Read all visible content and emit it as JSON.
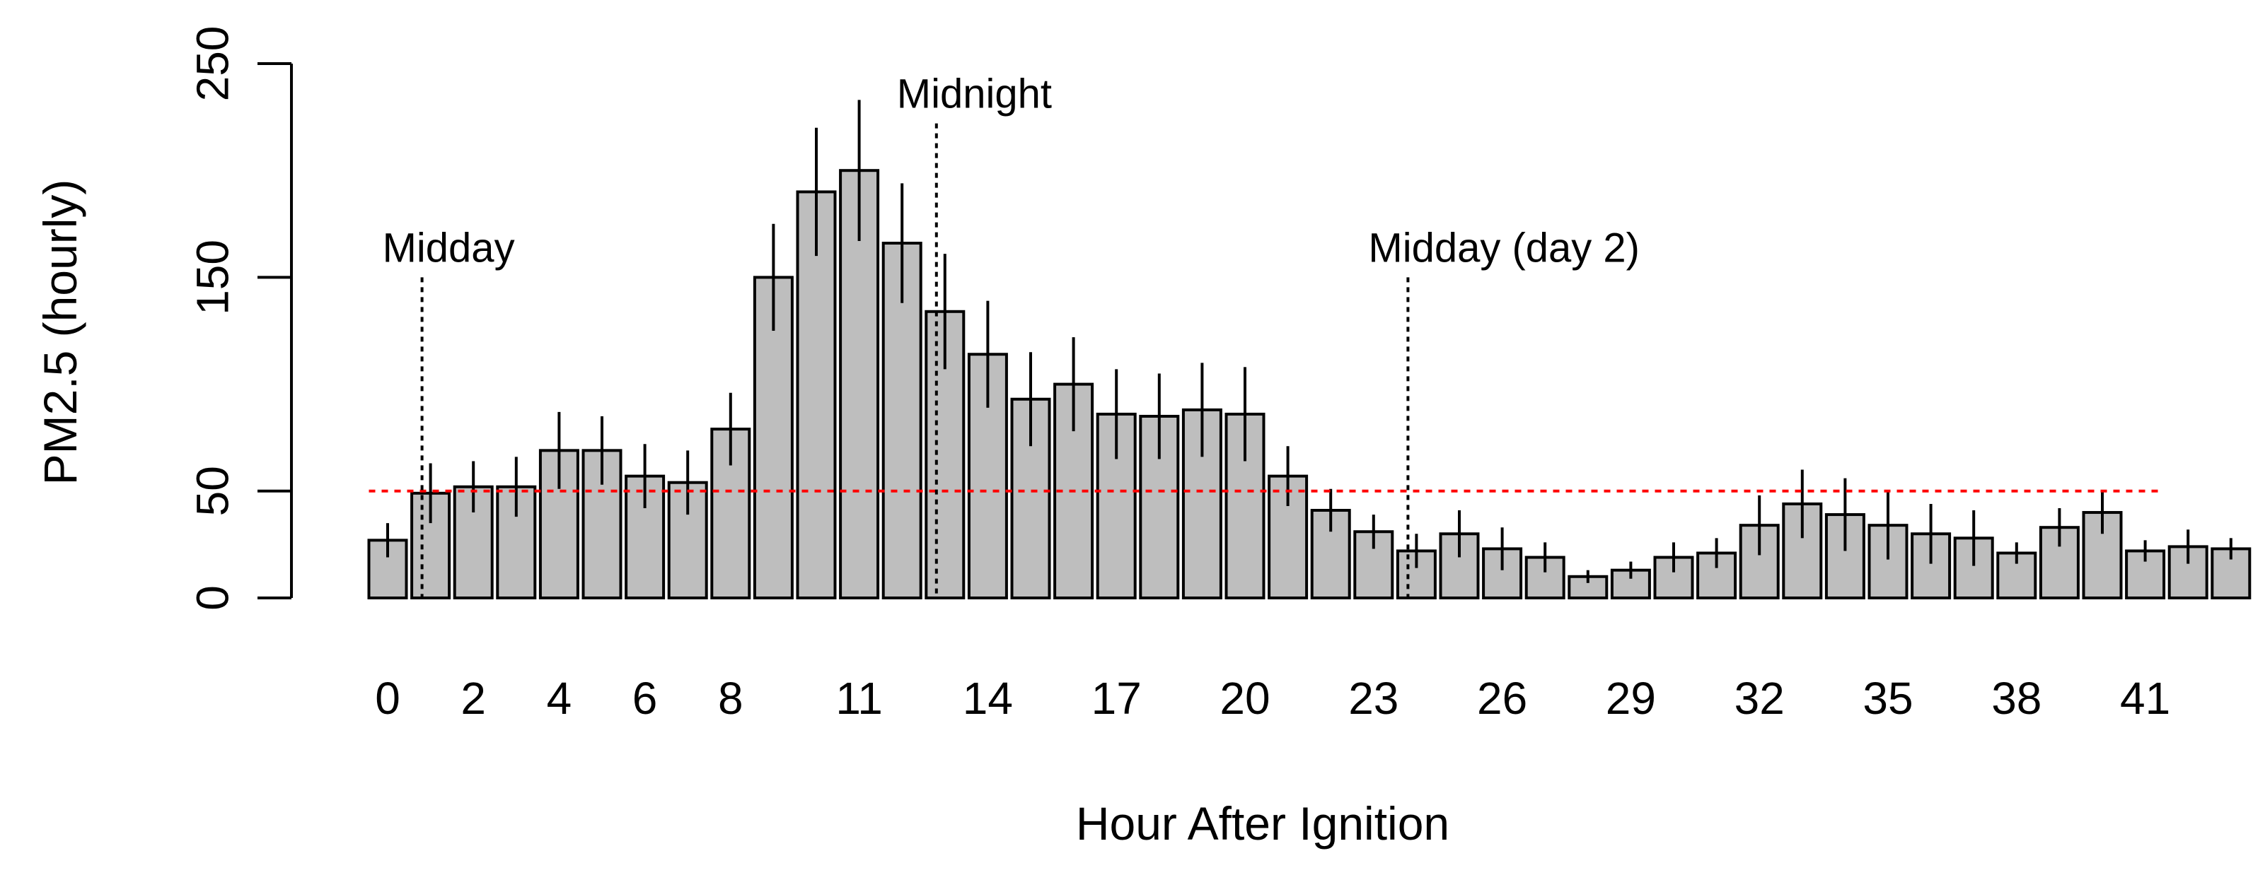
{
  "chart_data": {
    "type": "bar",
    "title": "",
    "xlabel": "Hour After Ignition",
    "ylabel": "PM2.5 (hourly)",
    "ylim": [
      0,
      250
    ],
    "y_ticks": [
      0,
      50,
      150,
      250
    ],
    "x": [
      0,
      1,
      2,
      3,
      4,
      5,
      6,
      7,
      8,
      9,
      10,
      11,
      12,
      13,
      14,
      15,
      16,
      17,
      18,
      19,
      20,
      21,
      22,
      23,
      24,
      25,
      26,
      27,
      28,
      29,
      30,
      31,
      32,
      33,
      34,
      35,
      36,
      37,
      38,
      39,
      40,
      41,
      42,
      43
    ],
    "x_tick_labels": [
      "0",
      "2",
      "4",
      "6",
      "8",
      "11",
      "14",
      "17",
      "20",
      "23",
      "26",
      "29",
      "32",
      "35",
      "38",
      "41"
    ],
    "values": [
      27,
      49,
      52,
      52,
      69,
      69,
      57,
      54,
      79,
      150,
      190,
      200,
      166,
      134,
      114,
      93,
      100,
      86,
      85,
      88,
      86,
      57,
      41,
      31,
      22,
      30,
      23,
      19,
      10,
      13,
      19,
      21,
      34,
      44,
      39,
      34,
      30,
      28,
      21,
      33,
      40,
      22,
      24,
      23
    ],
    "errors": [
      8,
      14,
      12,
      14,
      18,
      16,
      15,
      15,
      17,
      25,
      30,
      33,
      28,
      27,
      25,
      22,
      22,
      21,
      20,
      22,
      22,
      14,
      10,
      8,
      8,
      11,
      10,
      7,
      3,
      4,
      7,
      7,
      14,
      16,
      17,
      16,
      14,
      13,
      5,
      9,
      10,
      5,
      8,
      5
    ],
    "bar_color": "#bebebe",
    "reference_line": {
      "y": 50,
      "color": "#ff0000",
      "style": "dotted"
    },
    "annotations": [
      {
        "label": "Midday",
        "x": 1,
        "line_top": 150
      },
      {
        "label": "Midnight",
        "x": 13,
        "line_top": 222
      },
      {
        "label": "Midday (day 2)",
        "x": 24,
        "line_top": 150
      }
    ]
  }
}
